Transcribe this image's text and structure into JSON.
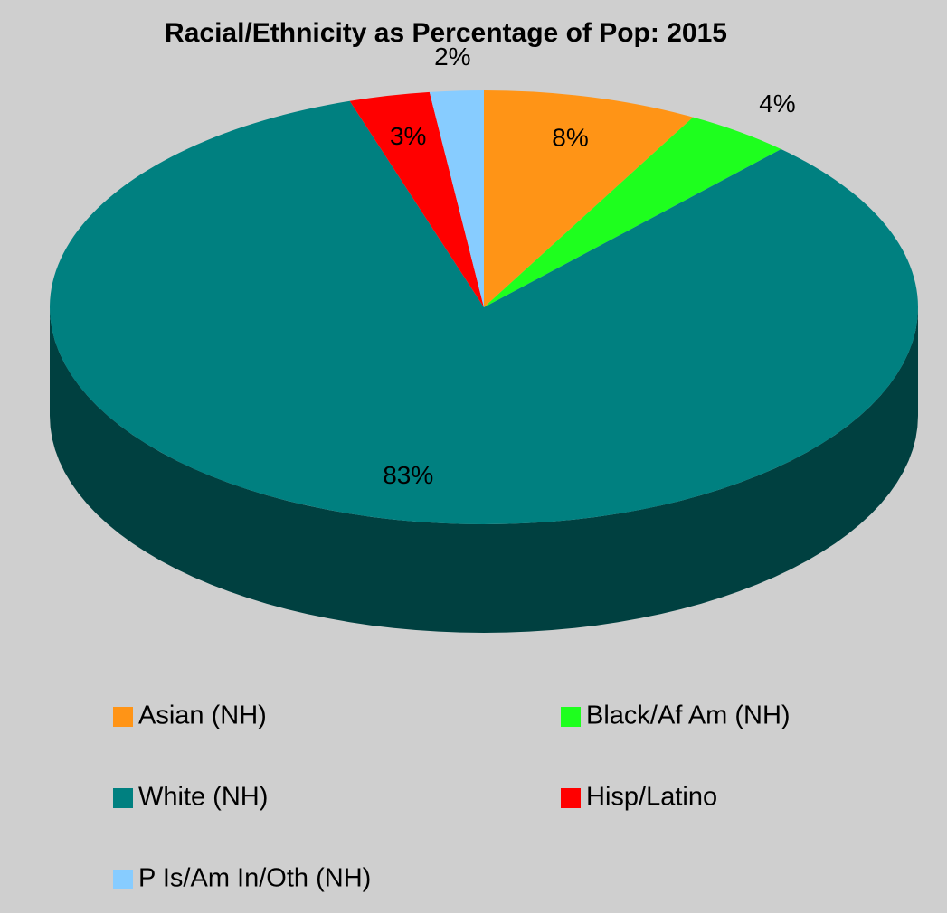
{
  "chart_data": {
    "type": "pie",
    "title": "Racial/Ethnicity as Percentage of Pop: 2015",
    "categories": [
      "Asian (NH)",
      "Black/Af Am (NH)",
      "White (NH)",
      "Hisp/Latino",
      "P Is/Am In/Oth (NH)"
    ],
    "values": [
      8,
      4,
      83,
      3,
      2
    ],
    "value_labels": [
      "8%",
      "4%",
      "83%",
      "3%",
      "2%"
    ],
    "colors": [
      "#ff9416",
      "#1eff1e",
      "#008080",
      "#ff0000",
      "#87ccff"
    ],
    "legend": "bottom"
  }
}
